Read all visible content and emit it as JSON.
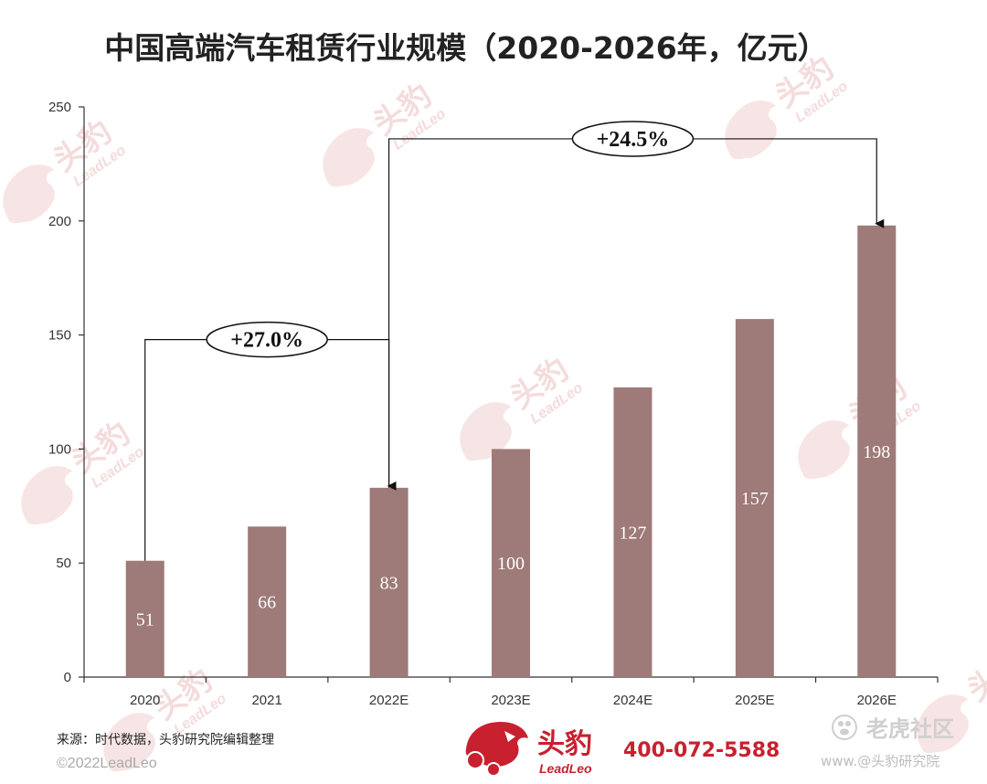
{
  "chart_data": {
    "type": "bar",
    "title": "中国高端汽车租赁行业规模（2020-2026年，亿元）",
    "categories": [
      "2020",
      "2021",
      "2022E",
      "2023E",
      "2024E",
      "2025E",
      "2026E"
    ],
    "values": [
      51,
      66,
      83,
      100,
      127,
      157,
      198
    ],
    "data_labels": [
      "51",
      "66",
      "83",
      "100",
      "127",
      "157",
      "198"
    ],
    "ylim": [
      0,
      250
    ],
    "yticks": [
      "0",
      "50",
      "100",
      "150",
      "200",
      "250"
    ],
    "xlabel": "",
    "ylabel": "",
    "grid": false,
    "bar_color": "#9e7a78",
    "annotations": [
      {
        "label": "+27.0%",
        "from": "2020",
        "to": "2022E"
      },
      {
        "label": "+24.5%",
        "from": "2022E",
        "to": "2026E"
      }
    ]
  },
  "footer": {
    "source": "来源：时代数据，头豹研究院编辑整理",
    "copyright": "©2022LeadLeo",
    "brand_cn": "头豹",
    "brand_en": "LeadLeo",
    "phone": "400-072-5588",
    "brand_color": "#c8202f"
  },
  "watermark": {
    "cn": "头豹",
    "en": "LeadLeo",
    "site": "老虎社区",
    "site_small": "www.@头豹研究院"
  }
}
